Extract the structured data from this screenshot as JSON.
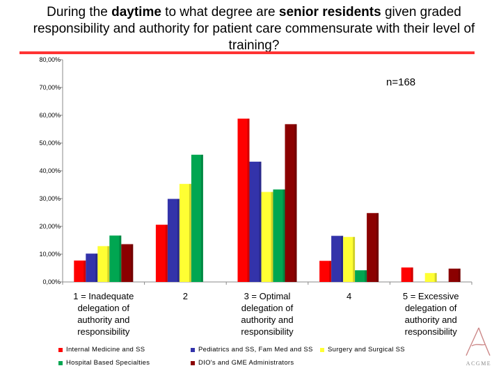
{
  "title": {
    "part1": "During the ",
    "bold1": "daytime",
    "part2": " to what degree are ",
    "bold2": "senior residents",
    "part3": " given graded responsibility and authority for patient care commensurate with their level of training?"
  },
  "annotation": "n=168",
  "logo_text": "ACGME",
  "colors": {
    "rule": "#ff3333",
    "series": [
      "#ff0000",
      "#3333aa",
      "#ffff33",
      "#00a651",
      "#8b0000"
    ]
  },
  "chart_data": {
    "type": "bar",
    "ylim": [
      0,
      80
    ],
    "yticks": [
      "0,00%",
      "10,00%",
      "20,00%",
      "30,00%",
      "40,00%",
      "50,00%",
      "60,00%",
      "70,00%",
      "80,00%"
    ],
    "ytick_values": [
      0,
      10,
      20,
      30,
      40,
      50,
      60,
      70,
      80
    ],
    "categories": [
      "1 = Inadequate delegation of authority and responsibility",
      "2",
      "3 = Optimal delegation of authority and responsibility",
      "4",
      "5 = Excessive delegation of authority and responsibility"
    ],
    "series": [
      {
        "name": "Internal Medicine and SS",
        "values": [
          7.7,
          20.6,
          58.8,
          7.6,
          5.2
        ]
      },
      {
        "name": "Pediatrics and SS, Fam Med and SS",
        "values": [
          10.2,
          29.9,
          43.3,
          16.6,
          0
        ]
      },
      {
        "name": "Surgery and Surgical SS",
        "values": [
          12.9,
          35.3,
          32.4,
          16.2,
          3.2
        ]
      },
      {
        "name": "Hospital Based Specialties",
        "values": [
          16.7,
          45.8,
          33.3,
          4.2,
          0
        ]
      },
      {
        "name": "DIO's and GME Administrators",
        "values": [
          13.6,
          0,
          56.8,
          24.8,
          4.8
        ]
      }
    ],
    "grid": false,
    "legend_position": "bottom"
  }
}
